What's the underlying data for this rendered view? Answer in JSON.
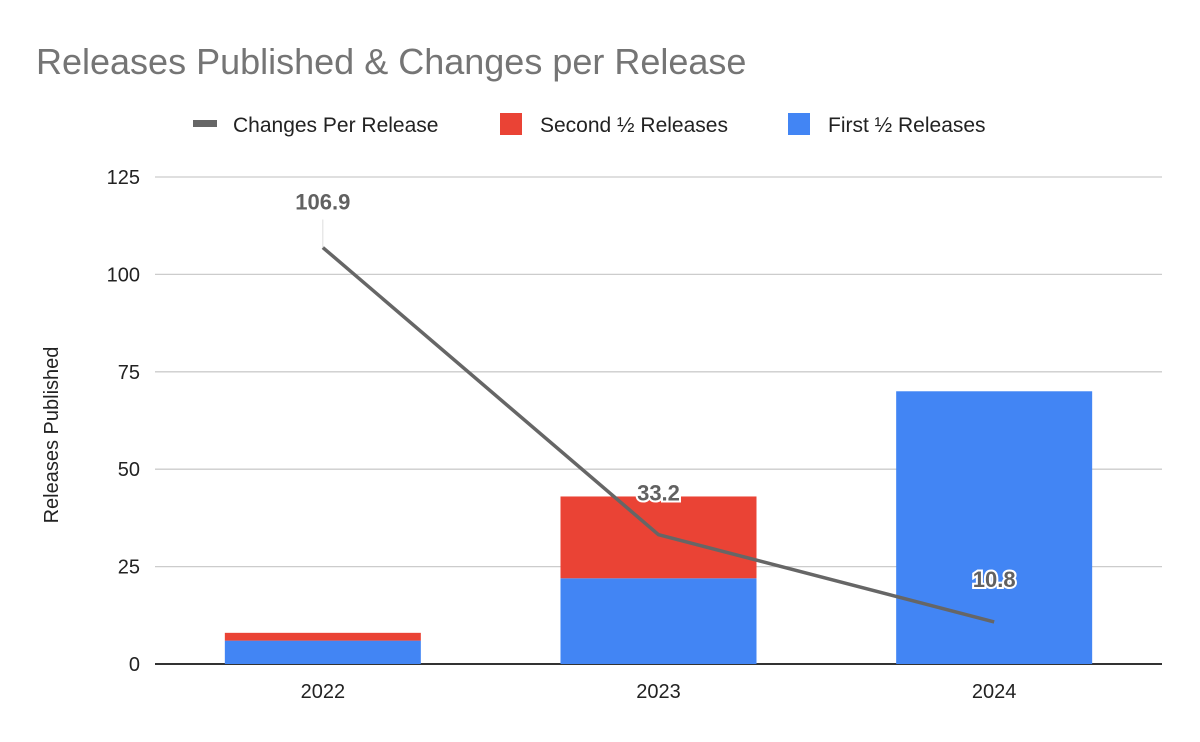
{
  "chart_data": {
    "type": "bar",
    "stacked": true,
    "title": "Releases Published & Changes per Release",
    "xlabel": "",
    "ylabel": "Releases Published",
    "ylim": [
      0,
      125
    ],
    "yticks": [
      "0",
      "25",
      "50",
      "75",
      "100",
      "125"
    ],
    "categories": [
      "2022",
      "2023",
      "2024"
    ],
    "series": [
      {
        "name": "First ½ Releases",
        "type": "bar",
        "color": "#4285f4",
        "values": [
          6,
          22,
          70
        ]
      },
      {
        "name": "Second ½ Releases",
        "type": "bar",
        "color": "#ea4335",
        "values": [
          2,
          21,
          0
        ]
      },
      {
        "name": "Changes Per Release",
        "type": "line",
        "color": "#666666",
        "values": [
          106.9,
          33.2,
          10.8
        ],
        "labels": [
          "106.9",
          "33.2",
          "10.8"
        ]
      }
    ],
    "legend": [
      "Changes Per Release",
      "Second ½ Releases",
      "First ½ Releases"
    ],
    "legend_position": "top",
    "grid": true
  }
}
